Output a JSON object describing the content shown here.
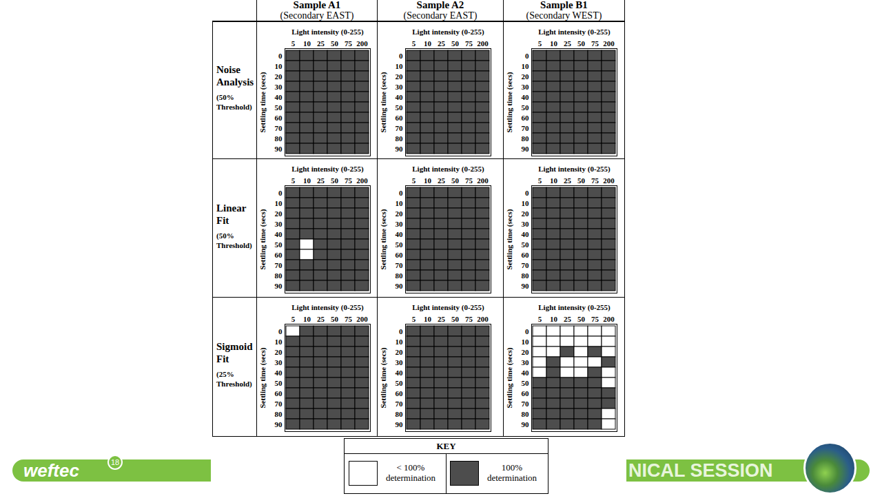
{
  "chart_data": {
    "type": "heatmap_grid",
    "columns": [
      {
        "title": "Sample A1",
        "subtitle": "(Secondary EAST)"
      },
      {
        "title": "Sample A2",
        "subtitle": "(Secondary EAST)"
      },
      {
        "title": "Sample B1",
        "subtitle": "(Secondary WEST)"
      }
    ],
    "x_label": "Light intensity (0-255)",
    "y_label": "Settling time (secs)",
    "x": [
      5,
      10,
      25,
      50,
      75,
      200
    ],
    "y": [
      0,
      10,
      20,
      30,
      40,
      50,
      60,
      70,
      80,
      90
    ],
    "rows": [
      {
        "title": "Noise Analysis",
        "subtitle": "(50% Threshold)",
        "panels": [
          {
            "cells": [
              [
                1,
                1,
                1,
                1,
                1,
                1
              ],
              [
                1,
                1,
                1,
                1,
                1,
                1
              ],
              [
                1,
                1,
                1,
                1,
                1,
                1
              ],
              [
                1,
                1,
                1,
                1,
                1,
                1
              ],
              [
                1,
                1,
                1,
                1,
                1,
                1
              ],
              [
                1,
                1,
                1,
                1,
                1,
                1
              ],
              [
                1,
                1,
                1,
                1,
                1,
                1
              ],
              [
                1,
                1,
                1,
                1,
                1,
                1
              ],
              [
                1,
                1,
                1,
                1,
                1,
                1
              ],
              [
                1,
                1,
                1,
                1,
                1,
                1
              ]
            ]
          },
          {
            "cells": [
              [
                1,
                1,
                1,
                1,
                1,
                1
              ],
              [
                1,
                1,
                1,
                1,
                1,
                1
              ],
              [
                1,
                1,
                1,
                1,
                1,
                1
              ],
              [
                1,
                1,
                1,
                1,
                1,
                1
              ],
              [
                1,
                1,
                1,
                1,
                1,
                1
              ],
              [
                1,
                1,
                1,
                1,
                1,
                1
              ],
              [
                1,
                1,
                1,
                1,
                1,
                1
              ],
              [
                1,
                1,
                1,
                1,
                1,
                1
              ],
              [
                1,
                1,
                1,
                1,
                1,
                1
              ],
              [
                1,
                1,
                1,
                1,
                1,
                1
              ]
            ]
          },
          {
            "cells": [
              [
                1,
                1,
                1,
                1,
                1,
                1
              ],
              [
                1,
                1,
                1,
                1,
                1,
                1
              ],
              [
                1,
                1,
                1,
                1,
                1,
                1
              ],
              [
                1,
                1,
                1,
                1,
                1,
                1
              ],
              [
                1,
                1,
                1,
                1,
                1,
                1
              ],
              [
                1,
                1,
                1,
                1,
                1,
                1
              ],
              [
                1,
                1,
                1,
                1,
                1,
                1
              ],
              [
                1,
                1,
                1,
                1,
                1,
                1
              ],
              [
                1,
                1,
                1,
                1,
                1,
                1
              ],
              [
                1,
                1,
                1,
                1,
                1,
                1
              ]
            ]
          }
        ]
      },
      {
        "title": "Linear Fit",
        "subtitle": "(50% Threshold)",
        "panels": [
          {
            "cells": [
              [
                1,
                1,
                1,
                1,
                1,
                1
              ],
              [
                1,
                1,
                1,
                1,
                1,
                1
              ],
              [
                1,
                1,
                1,
                1,
                1,
                1
              ],
              [
                1,
                1,
                1,
                1,
                1,
                1
              ],
              [
                1,
                1,
                1,
                1,
                1,
                1
              ],
              [
                1,
                0,
                1,
                1,
                1,
                1
              ],
              [
                1,
                0,
                1,
                1,
                1,
                1
              ],
              [
                1,
                1,
                1,
                1,
                1,
                1
              ],
              [
                1,
                1,
                1,
                1,
                1,
                1
              ],
              [
                1,
                1,
                1,
                1,
                1,
                1
              ]
            ]
          },
          {
            "cells": [
              [
                1,
                1,
                1,
                1,
                1,
                1
              ],
              [
                1,
                1,
                1,
                1,
                1,
                1
              ],
              [
                1,
                1,
                1,
                1,
                1,
                1
              ],
              [
                1,
                1,
                1,
                1,
                1,
                1
              ],
              [
                1,
                1,
                1,
                1,
                1,
                1
              ],
              [
                1,
                1,
                1,
                1,
                1,
                1
              ],
              [
                1,
                1,
                1,
                1,
                1,
                1
              ],
              [
                1,
                1,
                1,
                1,
                1,
                1
              ],
              [
                1,
                1,
                1,
                1,
                1,
                1
              ],
              [
                1,
                1,
                1,
                1,
                1,
                1
              ]
            ]
          },
          {
            "cells": [
              [
                1,
                1,
                1,
                1,
                1,
                1
              ],
              [
                1,
                1,
                1,
                1,
                1,
                1
              ],
              [
                1,
                1,
                1,
                1,
                1,
                1
              ],
              [
                1,
                1,
                1,
                1,
                1,
                1
              ],
              [
                1,
                1,
                1,
                1,
                1,
                1
              ],
              [
                1,
                1,
                1,
                1,
                1,
                1
              ],
              [
                1,
                1,
                1,
                1,
                1,
                1
              ],
              [
                1,
                1,
                1,
                1,
                1,
                1
              ],
              [
                1,
                1,
                1,
                1,
                1,
                1
              ],
              [
                1,
                1,
                1,
                1,
                1,
                1
              ]
            ]
          }
        ]
      },
      {
        "title": "Sigmoid Fit",
        "subtitle": "(25% Threshold)",
        "panels": [
          {
            "cells": [
              [
                0,
                1,
                1,
                1,
                1,
                1
              ],
              [
                1,
                1,
                1,
                1,
                1,
                1
              ],
              [
                1,
                1,
                1,
                1,
                1,
                1
              ],
              [
                1,
                1,
                1,
                1,
                1,
                1
              ],
              [
                1,
                1,
                1,
                1,
                1,
                1
              ],
              [
                1,
                1,
                1,
                1,
                1,
                1
              ],
              [
                1,
                1,
                1,
                1,
                1,
                1
              ],
              [
                1,
                1,
                1,
                1,
                1,
                1
              ],
              [
                1,
                1,
                1,
                1,
                1,
                1
              ],
              [
                1,
                1,
                1,
                1,
                1,
                1
              ]
            ]
          },
          {
            "cells": [
              [
                1,
                1,
                1,
                1,
                1,
                1
              ],
              [
                1,
                1,
                1,
                1,
                1,
                1
              ],
              [
                1,
                1,
                1,
                1,
                1,
                1
              ],
              [
                1,
                1,
                1,
                1,
                1,
                1
              ],
              [
                1,
                1,
                1,
                1,
                1,
                1
              ],
              [
                1,
                1,
                1,
                1,
                1,
                1
              ],
              [
                1,
                1,
                1,
                1,
                1,
                1
              ],
              [
                1,
                1,
                1,
                1,
                1,
                1
              ],
              [
                1,
                1,
                1,
                1,
                1,
                1
              ],
              [
                1,
                1,
                1,
                1,
                1,
                1
              ]
            ]
          },
          {
            "cells": [
              [
                0,
                0,
                0,
                0,
                0,
                0
              ],
              [
                0,
                0,
                0,
                0,
                0,
                0
              ],
              [
                0,
                0,
                1,
                0,
                1,
                0
              ],
              [
                0,
                1,
                0,
                0,
                0,
                1
              ],
              [
                0,
                1,
                0,
                0,
                1,
                0
              ],
              [
                1,
                1,
                1,
                1,
                1,
                0
              ],
              [
                1,
                1,
                1,
                1,
                1,
                1
              ],
              [
                1,
                1,
                1,
                1,
                1,
                1
              ],
              [
                1,
                1,
                1,
                1,
                1,
                0
              ],
              [
                1,
                1,
                1,
                1,
                1,
                0
              ]
            ]
          }
        ]
      }
    ],
    "key_title": "KEY",
    "key": [
      {
        "value": 0,
        "label": "< 100% determination",
        "color": "#ffffff"
      },
      {
        "value": 1,
        "label": "100% determination",
        "color": "#4d4d4d"
      }
    ]
  },
  "footer": {
    "logo": "weftec",
    "logo_badge": "18",
    "banner": "NICAL SESSION"
  }
}
